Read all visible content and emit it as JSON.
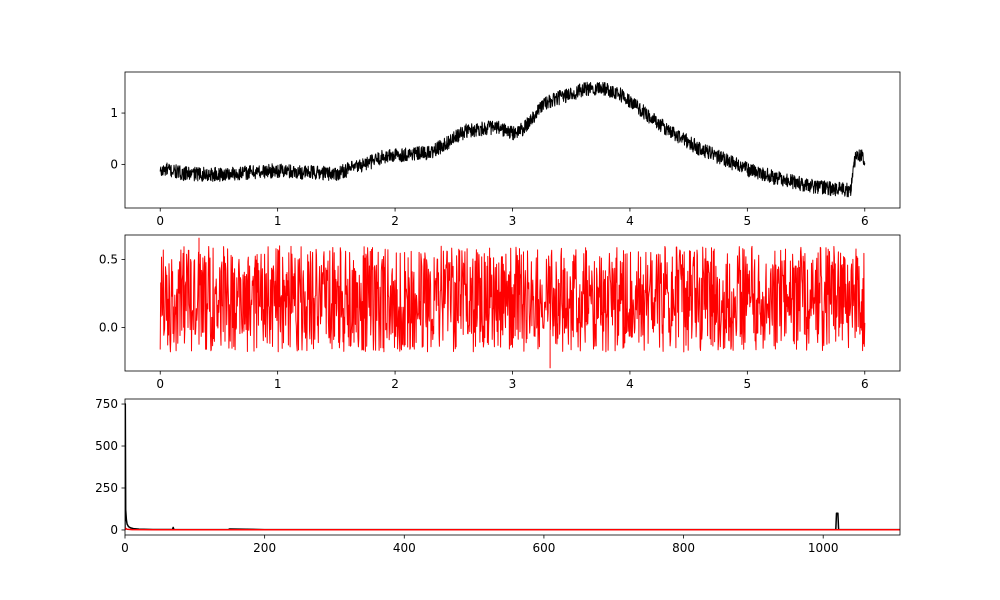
{
  "colors": {
    "black_series": "#000000",
    "red_series": "#ff0000",
    "axes": "#000000",
    "background": "#ffffff"
  },
  "chart_data": [
    {
      "type": "line",
      "title": "",
      "xlabel": "",
      "ylabel": "",
      "xlim": [
        -0.3,
        6.3
      ],
      "ylim": [
        -0.85,
        1.8
      ],
      "xticks": [
        0,
        1,
        2,
        3,
        4,
        5,
        6
      ],
      "xtick_labels": [
        "0",
        "1",
        "2",
        "3",
        "4",
        "5",
        "6"
      ],
      "yticks": [
        0,
        1
      ],
      "ytick_labels": [
        "0",
        "1"
      ],
      "grid": false,
      "series": [
        {
          "color": "#000000",
          "band_width": 0.28,
          "x": [
            0,
            0.05,
            0.2,
            0.5,
            0.8,
            1.0,
            1.2,
            1.5,
            1.6,
            1.8,
            1.9,
            2.1,
            2.3,
            2.5,
            2.6,
            2.8,
            2.9,
            3.0,
            3.1,
            3.25,
            3.4,
            3.6,
            3.75,
            3.9,
            4.1,
            4.3,
            4.6,
            5.0,
            5.3,
            5.6,
            5.88,
            5.92,
            5.97,
            6.0
          ],
          "y": [
            -0.15,
            -0.1,
            -0.18,
            -0.2,
            -0.15,
            -0.12,
            -0.15,
            -0.18,
            -0.1,
            0.05,
            0.15,
            0.2,
            0.22,
            0.5,
            0.65,
            0.72,
            0.7,
            0.6,
            0.7,
            1.15,
            1.3,
            1.45,
            1.5,
            1.4,
            1.05,
            0.7,
            0.3,
            -0.1,
            -0.3,
            -0.45,
            -0.5,
            0.15,
            0.2,
            0.0
          ]
        }
      ]
    },
    {
      "type": "line",
      "title": "",
      "xlabel": "",
      "ylabel": "",
      "xlim": [
        -0.3,
        6.3
      ],
      "ylim": [
        -0.32,
        0.68
      ],
      "xticks": [
        0,
        1,
        2,
        3,
        4,
        5,
        6
      ],
      "xtick_labels": [
        "0",
        "1",
        "2",
        "3",
        "4",
        "5",
        "6"
      ],
      "yticks": [
        0.0,
        0.5
      ],
      "ytick_labels": [
        "0.0",
        "0.5"
      ],
      "grid": false,
      "series": [
        {
          "color": "#ff0000",
          "x_range": [
            0,
            6
          ],
          "y_band": [
            -0.18,
            0.6
          ],
          "spikes": [
            {
              "x": 0.33,
              "y": 0.66
            },
            {
              "x": 3.32,
              "y": -0.3
            }
          ]
        }
      ]
    },
    {
      "type": "line",
      "title": "",
      "xlabel": "",
      "ylabel": "",
      "xlim": [
        0,
        1110
      ],
      "ylim": [
        -30,
        780
      ],
      "xticks": [
        0,
        200,
        400,
        600,
        800,
        1000
      ],
      "xtick_labels": [
        "0",
        "200",
        "400",
        "600",
        "800",
        "1000"
      ],
      "yticks": [
        0,
        250,
        500,
        750
      ],
      "ytick_labels": [
        "0",
        "250",
        "500",
        "750"
      ],
      "grid": false,
      "series": [
        {
          "color": "#000000",
          "x": [
            0,
            0.5,
            1,
            2,
            3,
            5,
            8,
            12,
            20,
            40,
            68,
            69,
            70,
            100,
            148,
            150,
            200,
            400,
            600,
            800,
            1015,
            1018,
            1019,
            1020,
            1021,
            1022,
            1025,
            1110
          ],
          "y": [
            0,
            750,
            120,
            60,
            35,
            20,
            12,
            8,
            5,
            3,
            3,
            15,
            3,
            2,
            2,
            6,
            2,
            2,
            2,
            2,
            2,
            2,
            100,
            100,
            100,
            2,
            2,
            2
          ]
        },
        {
          "color": "#ff0000",
          "x": [
            0,
            1,
            3,
            10,
            50,
            1110
          ],
          "y": [
            0,
            10,
            4,
            2,
            1,
            1
          ]
        }
      ]
    }
  ]
}
